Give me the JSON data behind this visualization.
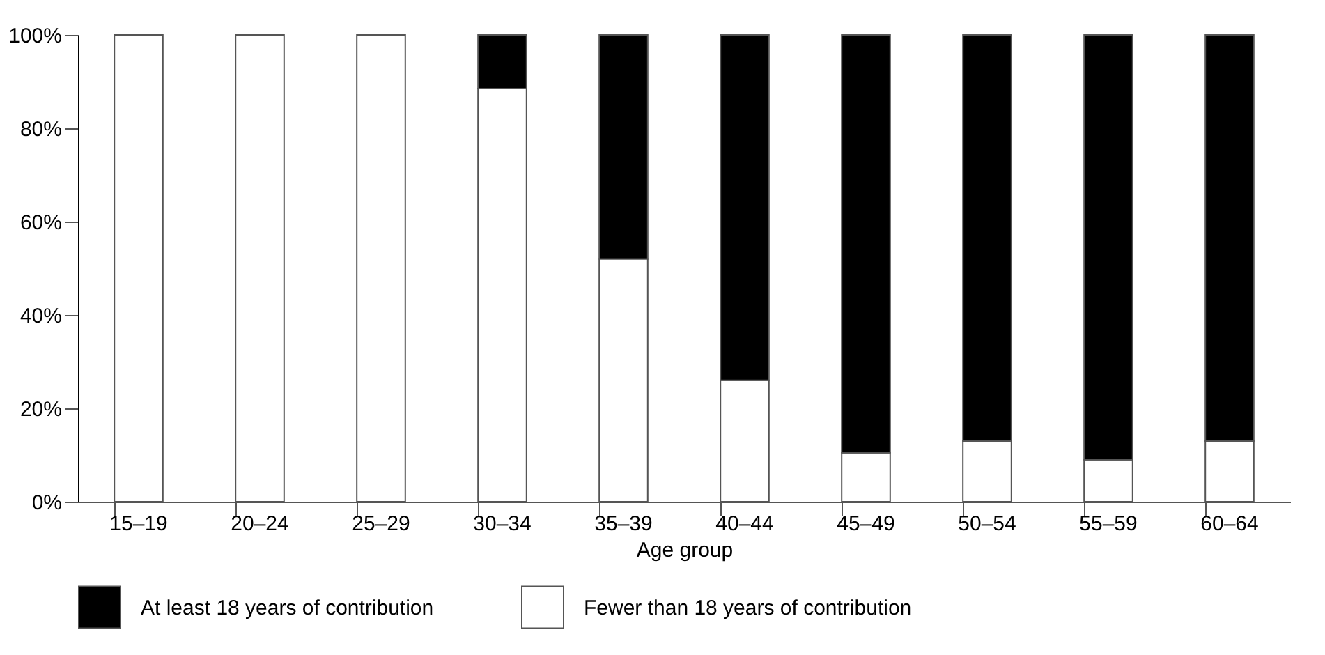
{
  "chart_data": {
    "type": "bar",
    "stacked": true,
    "xlabel": "Age group",
    "categories": [
      "15–19",
      "20–24",
      "25–29",
      "30–34",
      "35–39",
      "40–44",
      "45–49",
      "50–54",
      "55–59",
      "60–64"
    ],
    "series": [
      {
        "name": "Fewer than 18 years of contribution",
        "color": "#ffffff",
        "values": [
          100,
          100,
          100,
          88.5,
          52,
          26,
          10.5,
          13,
          9,
          13
        ]
      },
      {
        "name": "At least 18 years of contribution",
        "color": "#000000",
        "values": [
          0,
          0,
          0,
          11.5,
          48,
          74,
          89.5,
          87,
          91,
          87
        ]
      }
    ],
    "ylim": [
      0,
      100
    ],
    "yticks": [
      {
        "value": 0,
        "label": "0%"
      },
      {
        "value": 20,
        "label": "20%"
      },
      {
        "value": 40,
        "label": "40%"
      },
      {
        "value": 60,
        "label": "60%"
      },
      {
        "value": 80,
        "label": "80%"
      },
      {
        "value": 100,
        "label": "100%"
      }
    ],
    "grid": false,
    "legend": "bottom"
  }
}
